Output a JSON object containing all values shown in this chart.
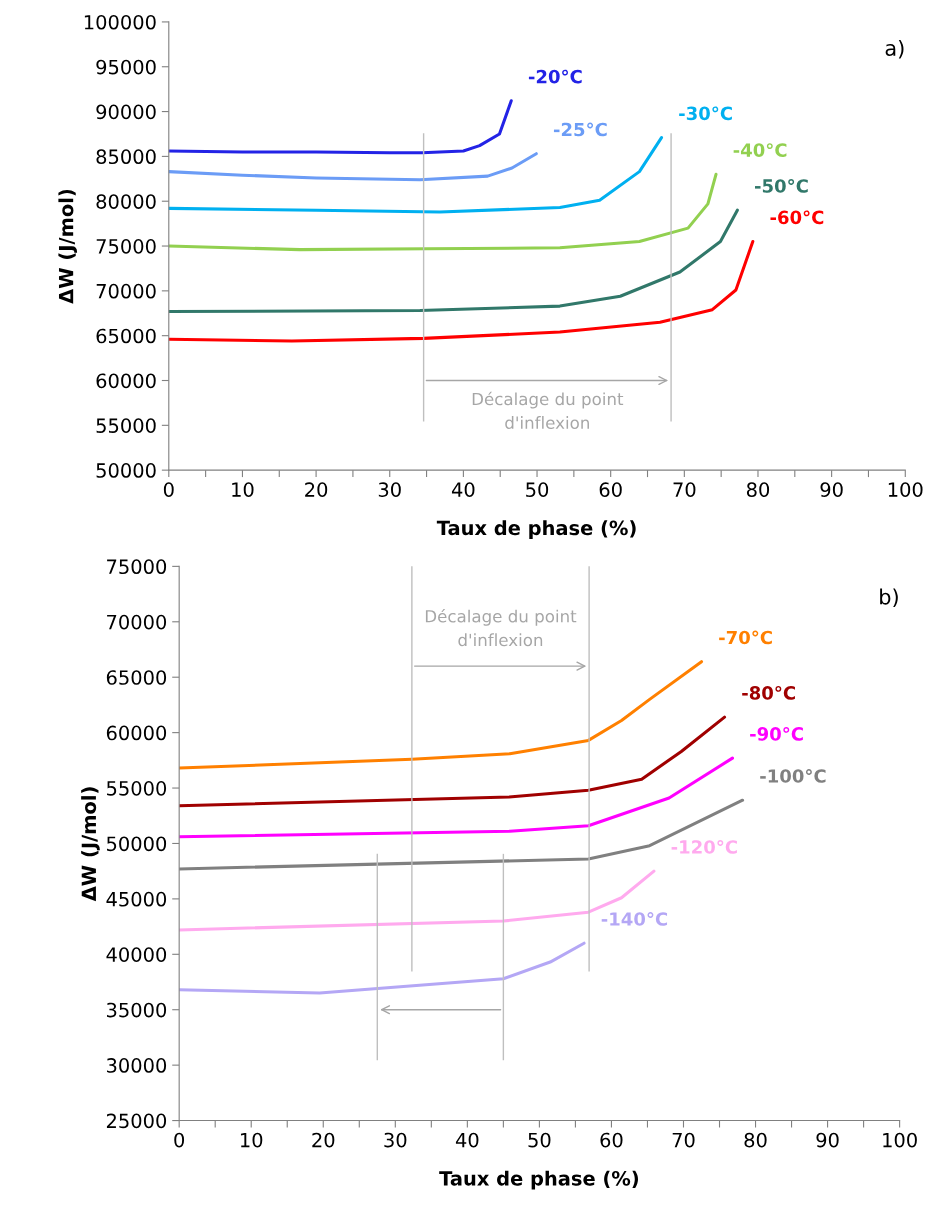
{
  "chart_data": [
    {
      "type": "line",
      "xlabel": "Taux de phase (%)",
      "ylabel": "ΔW (J/mol)",
      "xlim": [
        0,
        100
      ],
      "ylim": [
        50000,
        100000
      ],
      "xticks": [
        0,
        {
          "value": 5,
          "label": null
        },
        10,
        {
          "value": 15,
          "label": null
        },
        20,
        {
          "value": 25,
          "label": null
        },
        30,
        {
          "value": 35,
          "label": null
        },
        40,
        {
          "value": 45,
          "label": null
        },
        50,
        {
          "value": 55,
          "label": null
        },
        60,
        {
          "value": 65,
          "label": null
        },
        70,
        {
          "value": 75,
          "label": null
        },
        80,
        {
          "value": 85,
          "label": null
        },
        90,
        {
          "value": 95,
          "label": null
        },
        100
      ],
      "yticks": [
        50000,
        55000,
        60000,
        65000,
        70000,
        75000,
        80000,
        85000,
        90000,
        95000,
        100000
      ],
      "legend": false,
      "marker": "none",
      "line_style": "solid",
      "annotations": [
        "a)",
        "Décalage du point d'inflexion"
      ],
      "ref_lines": [
        {
          "axis": "x",
          "value": 34.6,
          "color": "#bfbfbf"
        },
        {
          "axis": "x",
          "value": 68.2,
          "color": "#bfbfbf"
        }
      ],
      "series": [
        {
          "name": "-20°C",
          "color": "#2323e6",
          "x": [
            0,
            10,
            20,
            30,
            34.4,
            40,
            42.2,
            44.9,
            46.5
          ],
          "values": [
            85600,
            85500,
            85500,
            85400,
            85400,
            85600,
            86200,
            87500,
            91200
          ]
        },
        {
          "name": "-25°C",
          "color": "#6b9cf6",
          "x": [
            0,
            10,
            20,
            34.1,
            43.3,
            46.6,
            49.9
          ],
          "values": [
            83300,
            82900,
            82600,
            82400,
            82800,
            83700,
            85300
          ]
        },
        {
          "name": "-30°C",
          "color": "#00b0f0",
          "x": [
            0,
            20,
            36.8,
            53.1,
            58.5,
            63.9,
            66.9
          ],
          "values": [
            79200,
            79000,
            78800,
            79300,
            80100,
            83300,
            87100
          ]
        },
        {
          "name": "-40°C",
          "color": "#92d050",
          "x": [
            0,
            17.8,
            35,
            53.1,
            63.9,
            70.5,
            73.2,
            74.3
          ],
          "values": [
            75000,
            74600,
            74700,
            74800,
            75500,
            77000,
            79700,
            83000
          ]
        },
        {
          "name": "-50°C",
          "color": "#31786a",
          "x": [
            0,
            34.1,
            53.1,
            61.3,
            69.4,
            74.9,
            77.2
          ],
          "values": [
            67700,
            67800,
            68300,
            69400,
            72100,
            75500,
            79000
          ]
        },
        {
          "name": "-60°C",
          "color": "#ff0000",
          "x": [
            0,
            16.7,
            34.6,
            53.1,
            66.7,
            73.8,
            77.0,
            79.3
          ],
          "values": [
            64600,
            64400,
            64700,
            65400,
            66500,
            67900,
            70100,
            75500
          ]
        }
      ]
    },
    {
      "type": "line",
      "xlabel": "Taux de phase (%)",
      "ylabel": "ΔW (J/mol)",
      "xlim": [
        0,
        100
      ],
      "ylim": [
        25000,
        75000
      ],
      "xticks": [
        0,
        {
          "value": 5,
          "label": null
        },
        10,
        {
          "value": 15,
          "label": null
        },
        20,
        {
          "value": 25,
          "label": null
        },
        30,
        {
          "value": 35,
          "label": null
        },
        40,
        {
          "value": 45,
          "label": null
        },
        50,
        {
          "value": 55,
          "label": null
        },
        60,
        {
          "value": 65,
          "label": null
        },
        70,
        {
          "value": 75,
          "label": null
        },
        80,
        {
          "value": 85,
          "label": null
        },
        90,
        {
          "value": 95,
          "label": null
        },
        100
      ],
      "yticks": [
        25000,
        30000,
        35000,
        40000,
        45000,
        50000,
        55000,
        60000,
        65000,
        70000,
        75000
      ],
      "legend": false,
      "marker": "none",
      "line_style": "solid",
      "annotations": [
        "b)",
        "Décalage du point d'inflexion"
      ],
      "ref_lines": [
        {
          "axis": "x",
          "value": 45.0,
          "color": "#bfbfbf"
        },
        {
          "axis": "x",
          "value": 27.5,
          "color": "#bfbfbf"
        },
        {
          "axis": "x",
          "value": 32.3,
          "color": "#bfbfbf"
        },
        {
          "axis": "x",
          "value": 56.9,
          "color": "#bfbfbf"
        }
      ],
      "series": [
        {
          "name": "-70°C",
          "color": "#ff8000",
          "x": [
            0,
            32.3,
            45.9,
            56.8,
            61.4,
            65.3,
            72.5
          ],
          "values": [
            56800,
            57600,
            58100,
            59300,
            61100,
            63000,
            66400
          ]
        },
        {
          "name": "-80°C",
          "color": "#a00000",
          "x": [
            0,
            45.8,
            56.8,
            64.2,
            69.7,
            75.7
          ],
          "values": [
            53400,
            54200,
            54800,
            55800,
            58300,
            61400
          ]
        },
        {
          "name": "-90°C",
          "color": "#ff00ff",
          "x": [
            0,
            45.9,
            56.8,
            68.0,
            76.8
          ],
          "values": [
            50600,
            51100,
            51600,
            54100,
            57700
          ]
        },
        {
          "name": "-100°C",
          "color": "#808080",
          "x": [
            0,
            56.8,
            65.3,
            78.2
          ],
          "values": [
            47700,
            48600,
            49800,
            53900
          ]
        },
        {
          "name": "-120°C",
          "color": "#ffaaee",
          "x": [
            0,
            45.0,
            56.8,
            61.4,
            65.9
          ],
          "values": [
            42200,
            43000,
            43800,
            45100,
            47500
          ]
        },
        {
          "name": "-140°C",
          "color": "#b4a7f5",
          "x": [
            0,
            19.5,
            45.0,
            51.5,
            56.2
          ],
          "values": [
            36800,
            36500,
            37800,
            39300,
            41000
          ]
        }
      ]
    }
  ]
}
